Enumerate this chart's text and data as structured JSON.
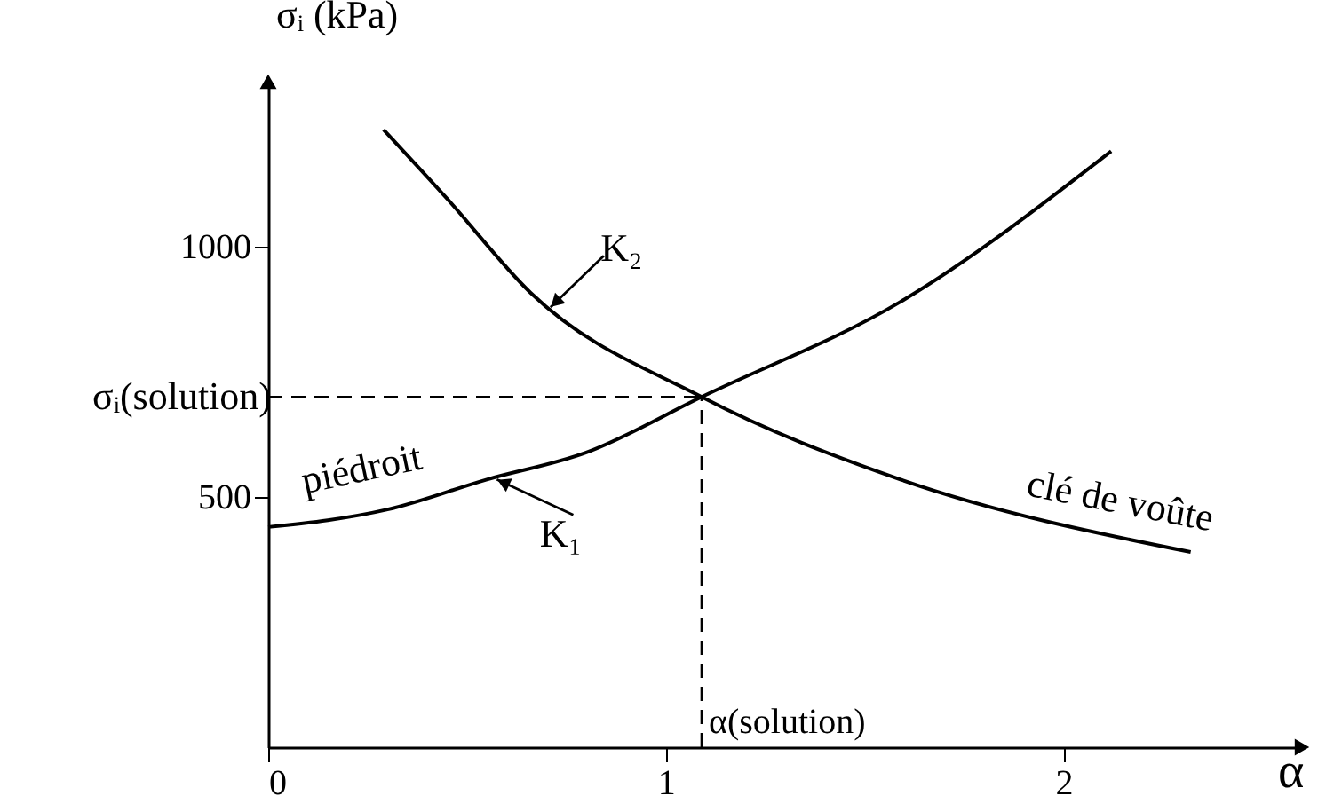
{
  "chart_data": {
    "type": "line",
    "xlabel": "α",
    "ylabel": "σᵢ (kPa)",
    "xlim": [
      0,
      2.6
    ],
    "ylim": [
      0,
      1330
    ],
    "xticks": [
      0,
      1,
      2
    ],
    "yticks": [
      500,
      1000
    ],
    "series": [
      {
        "color": "#000000",
        "x": [
          0,
          0.3,
          0.55,
          0.8,
          1.09,
          1.59,
          2.12
        ],
        "values": [
          440,
          475,
          535,
          589,
          700,
          890,
          1191
        ]
      },
      {
        "color": "#000000",
        "x": [
          0.29,
          0.45,
          0.66,
          1.09,
          1.59,
          2.32
        ],
        "values": [
          1234,
          1096,
          908,
          700,
          535,
          390
        ]
      }
    ],
    "ref_lines": [
      {
        "axis": "y",
        "value": 700,
        "label": "σᵢ(solution)",
        "line_style": "dashed"
      },
      {
        "axis": "x",
        "value": 1.09,
        "label": "α(solution)",
        "line_style": "dashed"
      }
    ],
    "annotations": [
      {
        "text": "K₁",
        "x": 0.575,
        "y": 535
      },
      {
        "text": "K₂",
        "x": 0.71,
        "y": 879
      },
      {
        "text": "piédroit",
        "x": 0.25,
        "y": 468
      },
      {
        "text": "clé de voûte",
        "x": 2.2,
        "y": 411
      }
    ]
  }
}
